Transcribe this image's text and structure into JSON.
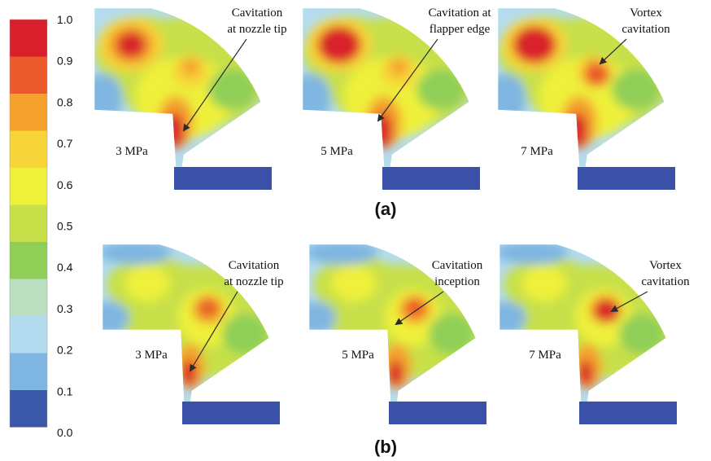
{
  "colorbar": {
    "ticks": [
      "1.0",
      "0.9",
      "0.8",
      "0.7",
      "0.6",
      "0.5",
      "0.4",
      "0.3",
      "0.2",
      "0.1",
      "0.0"
    ],
    "colors": [
      "#d9202a",
      "#ea5a2b",
      "#f4a12e",
      "#f7d437",
      "#eef03a",
      "#c7e04a",
      "#8fcf58",
      "#b9dfc0",
      "#b2dbef",
      "#7fb6e2",
      "#3b57a7"
    ]
  },
  "row_a": {
    "label": "(a)",
    "panels": [
      {
        "pressure": "3 MPa",
        "note": [
          "Cavitation",
          "at nozzle tip"
        ]
      },
      {
        "pressure": "5 MPa",
        "note": [
          "Cavitation at",
          "flapper edge"
        ]
      },
      {
        "pressure": "7 MPa",
        "note": [
          "Vortex",
          "cavitation"
        ]
      }
    ]
  },
  "row_b": {
    "label": "(b)",
    "panels": [
      {
        "pressure": "3 MPa",
        "note": [
          "Cavitation",
          "at nozzle tip"
        ]
      },
      {
        "pressure": "5 MPa",
        "note": [
          "Cavitation",
          "inception"
        ]
      },
      {
        "pressure": "7 MPa",
        "note": [
          "Vortex",
          "cavitation"
        ]
      }
    ]
  },
  "colors": {
    "base_fill": "#b3dcef",
    "flapper": "#3b50a8",
    "arrow": "#2b2b2b"
  }
}
